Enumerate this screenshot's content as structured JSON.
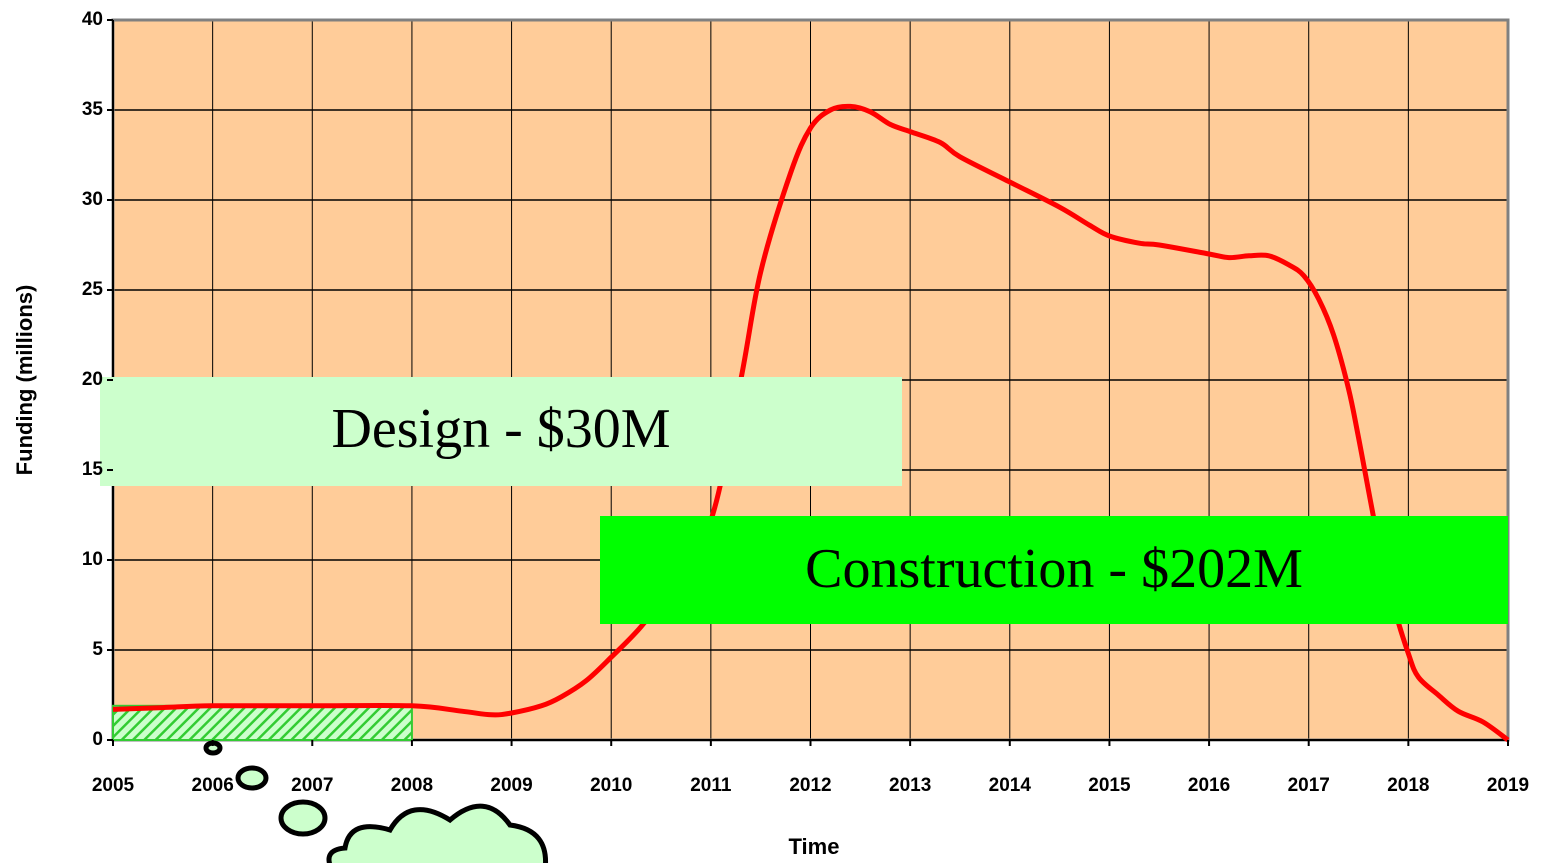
{
  "chart_data": {
    "type": "line",
    "xlabel": "Time",
    "ylabel": "Funding (millions)",
    "x": [
      2005,
      2005.5,
      2006,
      2007,
      2008,
      2008.5,
      2008.8,
      2009,
      2009.3,
      2009.5,
      2009.75,
      2010,
      2010.3,
      2010.6,
      2011,
      2011.3,
      2011.5,
      2011.8,
      2012,
      2012.2,
      2012.4,
      2012.6,
      2012.8,
      2013,
      2013.3,
      2013.5,
      2014,
      2014.5,
      2014.8,
      2015,
      2015.3,
      2015.5,
      2016,
      2016.2,
      2016.4,
      2016.6,
      2016.8,
      2016.95,
      2017.1,
      2017.25,
      2017.4,
      2017.5,
      2017.7,
      2017.85,
      2018,
      2018.1,
      2018.3,
      2018.5,
      2018.75,
      2019
    ],
    "values": [
      1.7,
      1.8,
      1.9,
      1.9,
      1.9,
      1.6,
      1.4,
      1.5,
      1.9,
      2.4,
      3.3,
      4.6,
      6.3,
      8.5,
      12.2,
      20,
      26,
      31.5,
      34,
      35,
      35.2,
      34.9,
      34.2,
      33.8,
      33.2,
      32.4,
      31,
      29.6,
      28.6,
      28,
      27.6,
      27.5,
      27,
      26.8,
      26.9,
      26.9,
      26.4,
      25.8,
      24.5,
      22.5,
      19.5,
      16.8,
      11,
      7.5,
      4.8,
      3.5,
      2.5,
      1.6,
      1,
      0
    ],
    "color": "#ff0000",
    "highlight": {
      "xlim": [
        2005,
        2008
      ],
      "value": 1.9,
      "color": "#33cc33"
    },
    "annotations": [
      "Design - $30M",
      "Construction - $202M"
    ],
    "xlim": [
      2005,
      2019
    ],
    "xticks": [
      2005,
      2006,
      2007,
      2008,
      2009,
      2010,
      2011,
      2012,
      2013,
      2014,
      2015,
      2016,
      2017,
      2018,
      2019
    ],
    "ylim": [
      0,
      40
    ],
    "yticks": [
      0,
      5,
      10,
      15,
      20,
      25,
      30,
      35,
      40
    ],
    "grid": true
  }
}
